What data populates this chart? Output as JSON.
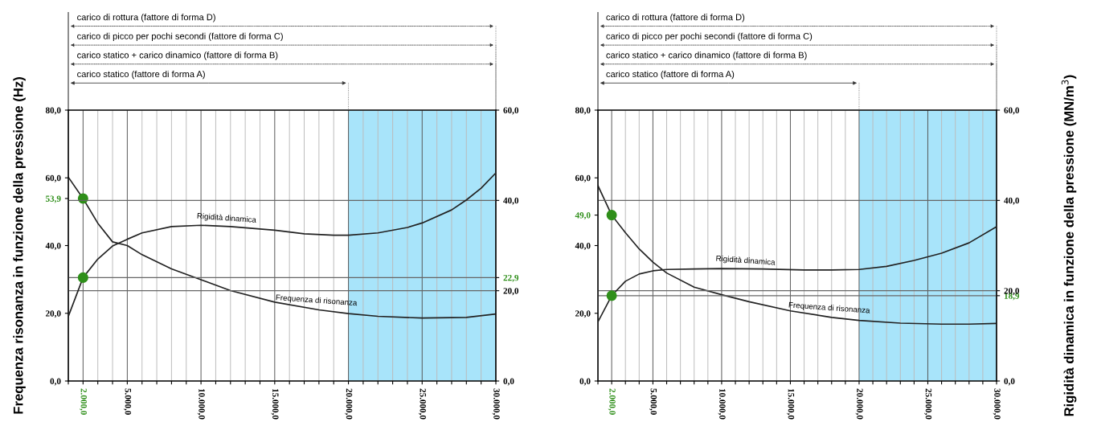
{
  "chart_data": [
    {
      "type": "line",
      "ylabel": "Frequenza risonanza in funzione della pressione (Hz)",
      "xlim": [
        1000,
        30000
      ],
      "ylim": [
        0,
        80
      ],
      "y2lim": [
        0,
        60
      ],
      "xticks": [
        {
          "value": 1000,
          "label": null
        },
        {
          "value": 2000,
          "label": "2.000,0"
        },
        {
          "value": 3000,
          "label": null
        },
        {
          "value": 4000,
          "label": null
        },
        {
          "value": 5000,
          "label": "5.000,0"
        },
        {
          "value": 6000,
          "label": null
        },
        {
          "value": 7000,
          "label": null
        },
        {
          "value": 8000,
          "label": null
        },
        {
          "value": 9000,
          "label": null
        },
        {
          "value": 10000,
          "label": "10.000,0"
        },
        {
          "value": 11000,
          "label": null
        },
        {
          "value": 12000,
          "label": null
        },
        {
          "value": 13000,
          "label": null
        },
        {
          "value": 14000,
          "label": null
        },
        {
          "value": 15000,
          "label": "15.000,0"
        },
        {
          "value": 16000,
          "label": null
        },
        {
          "value": 17000,
          "label": null
        },
        {
          "value": 18000,
          "label": null
        },
        {
          "value": 19000,
          "label": null
        },
        {
          "value": 20000,
          "label": "20.000,0"
        },
        {
          "value": 21000,
          "label": null
        },
        {
          "value": 22000,
          "label": null
        },
        {
          "value": 23000,
          "label": null
        },
        {
          "value": 24000,
          "label": null
        },
        {
          "value": 25000,
          "label": "25.000,0"
        },
        {
          "value": 26000,
          "label": null
        },
        {
          "value": 27000,
          "label": null
        },
        {
          "value": 28000,
          "label": null
        },
        {
          "value": 29000,
          "label": null
        },
        {
          "value": 30000,
          "label": "30.000,0"
        }
      ],
      "yticks": [
        {
          "value": 0,
          "label": "0,0"
        },
        {
          "value": 20,
          "label": "20,0"
        },
        {
          "value": 40,
          "label": "40,0"
        },
        {
          "value": 53.9,
          "label": "53,9"
        },
        {
          "value": 60,
          "label": "60,0"
        },
        {
          "value": 80,
          "label": "80,0"
        }
      ],
      "y2ticks": [
        {
          "value": 0,
          "label": "0,0"
        },
        {
          "value": 20,
          "label": "20,0"
        },
        {
          "value": 22.9,
          "label": "22,9"
        },
        {
          "value": 40,
          "label": "40,0"
        },
        {
          "value": 60,
          "label": "60,0"
        }
      ],
      "grid": true,
      "series": [
        {
          "name": "Frequenza di risonanza",
          "color": "#222222",
          "axis": "y",
          "x": [
            1000,
            2000,
            3000,
            4000,
            5000,
            6000,
            8000,
            10000,
            12000,
            15000,
            18000,
            20000,
            22000,
            25000,
            28000,
            30000
          ],
          "values": [
            60.2,
            53.9,
            46.6,
            41.1,
            40.0,
            37.3,
            33.1,
            29.9,
            26.7,
            23.3,
            21.0,
            19.9,
            19.1,
            18.6,
            18.8,
            19.8
          ]
        },
        {
          "name": "Rigidità dinamica",
          "color": "#222222",
          "axis": "y2",
          "x": [
            1000,
            2000,
            3000,
            4000,
            5000,
            6000,
            8000,
            10000,
            12000,
            15000,
            17000,
            19000,
            20000,
            22000,
            24000,
            25000,
            27000,
            28000,
            29000,
            30000
          ],
          "values": [
            14.3,
            22.9,
            27.0,
            29.9,
            31.4,
            32.8,
            34.2,
            34.5,
            34.2,
            33.4,
            32.6,
            32.3,
            32.3,
            32.8,
            34.0,
            35.0,
            37.9,
            40.1,
            42.7,
            46.1
          ]
        },
        {
          "type": "scatter",
          "color": "#2f8f1a",
          "axis": "y",
          "x": [
            2000
          ],
          "values": [
            53.9
          ]
        },
        {
          "type": "scatter",
          "color": "#2f8f1a",
          "axis": "y2",
          "x": [
            2000
          ],
          "values": [
            22.9
          ]
        }
      ],
      "bands": [
        {
          "axis": "x",
          "from": 20000,
          "to": 30000,
          "color": "#a8e4fa"
        }
      ],
      "annotations": [
        "carico di rottura (fattore di forma D)",
        "carico di picco per pochi secondi (fattore di forma C)",
        "carico statico + carico dinamico (fattore di forma B)",
        "carico statico (fattore di forma A)"
      ]
    },
    {
      "type": "line",
      "y2label": "Rigidità dinamica in funzione della pressione (MN/m$^{3}$)",
      "xlim": [
        1000,
        30000
      ],
      "ylim": [
        0,
        80
      ],
      "y2lim": [
        0,
        60
      ],
      "xticks": [
        {
          "value": 1000,
          "label": null
        },
        {
          "value": 2000,
          "label": "2.000,0"
        },
        {
          "value": 3000,
          "label": null
        },
        {
          "value": 4000,
          "label": null
        },
        {
          "value": 5000,
          "label": "5.000,0"
        },
        {
          "value": 6000,
          "label": null
        },
        {
          "value": 7000,
          "label": null
        },
        {
          "value": 8000,
          "label": null
        },
        {
          "value": 9000,
          "label": null
        },
        {
          "value": 10000,
          "label": "10.000,0"
        },
        {
          "value": 11000,
          "label": null
        },
        {
          "value": 12000,
          "label": null
        },
        {
          "value": 13000,
          "label": null
        },
        {
          "value": 14000,
          "label": null
        },
        {
          "value": 15000,
          "label": "15.000,0"
        },
        {
          "value": 16000,
          "label": null
        },
        {
          "value": 17000,
          "label": null
        },
        {
          "value": 18000,
          "label": null
        },
        {
          "value": 19000,
          "label": null
        },
        {
          "value": 20000,
          "label": "20.000,0"
        },
        {
          "value": 21000,
          "label": null
        },
        {
          "value": 22000,
          "label": null
        },
        {
          "value": 23000,
          "label": null
        },
        {
          "value": 24000,
          "label": null
        },
        {
          "value": 25000,
          "label": "25.000,0"
        },
        {
          "value": 26000,
          "label": null
        },
        {
          "value": 27000,
          "label": null
        },
        {
          "value": 28000,
          "label": null
        },
        {
          "value": 29000,
          "label": null
        },
        {
          "value": 30000,
          "label": "30.000,0"
        }
      ],
      "yticks": [
        {
          "value": 0,
          "label": "0,0"
        },
        {
          "value": 20,
          "label": "20,0"
        },
        {
          "value": 40,
          "label": "40,0"
        },
        {
          "value": 49.0,
          "label": "49,0"
        },
        {
          "value": 60,
          "label": "60,0"
        },
        {
          "value": 80,
          "label": "80,0"
        }
      ],
      "y2ticks": [
        {
          "value": 0,
          "label": "0,0"
        },
        {
          "value": 18.9,
          "label": "18,9"
        },
        {
          "value": 20,
          "label": "20,0"
        },
        {
          "value": 40,
          "label": "40,0"
        },
        {
          "value": 60,
          "label": "60,0"
        }
      ],
      "grid": true,
      "series": [
        {
          "name": "Frequenza di risonanza",
          "color": "#222222",
          "axis": "y",
          "x": [
            1000,
            2000,
            3000,
            4000,
            5000,
            6000,
            8000,
            10000,
            12000,
            15000,
            18000,
            20000,
            23000,
            26000,
            28000,
            30000
          ],
          "values": [
            57.7,
            49.0,
            43.8,
            39.0,
            35.1,
            31.9,
            27.7,
            25.5,
            23.4,
            20.7,
            18.8,
            17.9,
            17.1,
            16.8,
            16.8,
            17.0
          ]
        },
        {
          "name": "Rigidità dinamica",
          "color": "#222222",
          "axis": "y2",
          "x": [
            1000,
            2000,
            3000,
            4000,
            5000,
            6000,
            8000,
            10000,
            13000,
            16000,
            18000,
            20000,
            22000,
            24000,
            26000,
            28000,
            30000
          ],
          "values": [
            13.1,
            18.9,
            22.1,
            23.7,
            24.4,
            24.7,
            24.8,
            24.9,
            24.8,
            24.6,
            24.6,
            24.7,
            25.4,
            26.7,
            28.3,
            30.6,
            34.2
          ]
        },
        {
          "type": "scatter",
          "color": "#2f8f1a",
          "axis": "y",
          "x": [
            2000
          ],
          "values": [
            49.0
          ]
        },
        {
          "type": "scatter",
          "color": "#2f8f1a",
          "axis": "y2",
          "x": [
            2000
          ],
          "values": [
            18.9
          ]
        }
      ],
      "bands": [
        {
          "axis": "x",
          "from": 20000,
          "to": 30000,
          "color": "#a8e4fa"
        }
      ],
      "annotations": [
        "carico di rottura (fattore di forma D)",
        "carico di picco per pochi secondi (fattore di forma C)",
        "carico statico + carico dinamico (fattore di forma B)",
        "carico statico (fattore di forma A)"
      ]
    }
  ]
}
